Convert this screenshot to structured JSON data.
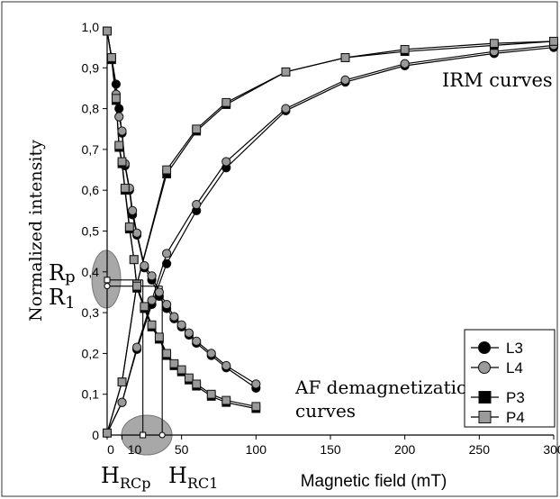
{
  "chart_data": {
    "type": "line",
    "xlabel": "Magnetic field (mT)",
    "ylabel": "Normalized intensity",
    "xlim": [
      0,
      300
    ],
    "ylim": [
      0,
      1
    ],
    "x_tick_labels": [
      "0",
      "10",
      "50",
      "100",
      "150",
      "200",
      "250",
      "300"
    ],
    "y_tick_labels": [
      "0",
      "0,1",
      "0,2",
      "0,3",
      "0,4",
      "0,5",
      "0,6",
      "0,7",
      "0,8",
      "0,9",
      "1,0"
    ],
    "x_scale": "linear",
    "grid": false,
    "legend_position": "bottom-right",
    "annotations": {
      "irm": "IRM curves",
      "af_line1": "AF demagnetization",
      "af_line2": "curves",
      "rp_main": "R",
      "rp_sub": "p",
      "r1_main": "R",
      "r1_sub": "1",
      "hrcp_main": "H",
      "hrcp_sub": "RCp",
      "hrc1_main": "H",
      "hrc1_sub": "RC1"
    },
    "markers": {
      "rp": {
        "x": 0,
        "y": 0.38
      },
      "r1": {
        "x": 0,
        "y": 0.365
      },
      "hrcp": {
        "x": 24,
        "y": 0
      },
      "hrc1": {
        "x": 37,
        "y": 0
      }
    },
    "series": [
      {
        "name": "L3",
        "group": "IRM",
        "marker": "circle",
        "color": "#000000",
        "x": [
          0,
          10,
          20,
          30,
          40,
          60,
          80,
          120,
          160,
          200,
          260,
          300
        ],
        "y": [
          0.005,
          0.08,
          0.21,
          0.32,
          0.42,
          0.55,
          0.655,
          0.795,
          0.865,
          0.905,
          0.935,
          0.95
        ]
      },
      {
        "name": "L4",
        "group": "IRM",
        "marker": "circle",
        "color": "#9a9a9a",
        "x": [
          0,
          10,
          20,
          30,
          40,
          60,
          80,
          120,
          160,
          200,
          260,
          300
        ],
        "y": [
          0.005,
          0.08,
          0.215,
          0.33,
          0.445,
          0.565,
          0.67,
          0.8,
          0.87,
          0.91,
          0.94,
          0.955
        ]
      },
      {
        "name": "P3",
        "group": "IRM",
        "marker": "square",
        "color": "#000000",
        "x": [
          0,
          10,
          20,
          40,
          60,
          80,
          120,
          160,
          200,
          260,
          300
        ],
        "y": [
          0.005,
          0.13,
          0.37,
          0.64,
          0.745,
          0.81,
          0.89,
          0.925,
          0.94,
          0.955,
          0.965
        ]
      },
      {
        "name": "P4",
        "group": "IRM",
        "marker": "square",
        "color": "#9a9a9a",
        "x": [
          0,
          10,
          20,
          40,
          60,
          80,
          120,
          160,
          200,
          260,
          300
        ],
        "y": [
          0.005,
          0.13,
          0.37,
          0.65,
          0.75,
          0.815,
          0.89,
          0.925,
          0.945,
          0.96,
          0.965
        ]
      },
      {
        "name": "L3",
        "group": "AF",
        "marker": "circle",
        "color": "#000000",
        "x": [
          0,
          3,
          6,
          8,
          10,
          12,
          15,
          17,
          20,
          25,
          30,
          35,
          40,
          45,
          50,
          55,
          60,
          70,
          80,
          100
        ],
        "y": [
          0.99,
          0.925,
          0.86,
          0.8,
          0.74,
          0.66,
          0.6,
          0.54,
          0.49,
          0.41,
          0.38,
          0.34,
          0.31,
          0.285,
          0.265,
          0.245,
          0.225,
          0.195,
          0.165,
          0.115
        ]
      },
      {
        "name": "L4",
        "group": "AF",
        "marker": "circle",
        "color": "#9a9a9a",
        "x": [
          0,
          3,
          6,
          8,
          10,
          12,
          15,
          17,
          20,
          25,
          30,
          35,
          40,
          45,
          50,
          55,
          60,
          70,
          80,
          100
        ],
        "y": [
          0.99,
          0.925,
          0.835,
          0.78,
          0.745,
          0.665,
          0.605,
          0.55,
          0.495,
          0.415,
          0.39,
          0.35,
          0.32,
          0.29,
          0.27,
          0.25,
          0.23,
          0.2,
          0.17,
          0.125
        ]
      },
      {
        "name": "P3",
        "group": "AF",
        "marker": "square",
        "color": "#000000",
        "x": [
          0,
          3,
          6,
          8,
          10,
          12,
          15,
          18,
          20,
          25,
          30,
          35,
          40,
          45,
          50,
          55,
          60,
          70,
          80,
          100
        ],
        "y": [
          0.99,
          0.92,
          0.82,
          0.705,
          0.665,
          0.6,
          0.505,
          0.43,
          0.36,
          0.31,
          0.265,
          0.235,
          0.195,
          0.17,
          0.155,
          0.135,
          0.12,
          0.095,
          0.08,
          0.065
        ]
      },
      {
        "name": "P4",
        "group": "AF",
        "marker": "square",
        "color": "#9a9a9a",
        "x": [
          0,
          3,
          6,
          8,
          10,
          12,
          15,
          18,
          20,
          25,
          30,
          35,
          40,
          45,
          50,
          55,
          60,
          70,
          80,
          100
        ],
        "y": [
          0.99,
          0.925,
          0.825,
          0.71,
          0.67,
          0.605,
          0.51,
          0.43,
          0.365,
          0.315,
          0.27,
          0.24,
          0.2,
          0.175,
          0.16,
          0.14,
          0.125,
          0.1,
          0.085,
          0.07
        ]
      }
    ],
    "legend": [
      {
        "label": "L3",
        "marker": "circle",
        "color": "#000000"
      },
      {
        "label": "L4",
        "marker": "circle",
        "color": "#9a9a9a"
      },
      {
        "label": "P3",
        "marker": "square",
        "color": "#000000"
      },
      {
        "label": "P4",
        "marker": "square",
        "color": "#9a9a9a"
      }
    ]
  }
}
